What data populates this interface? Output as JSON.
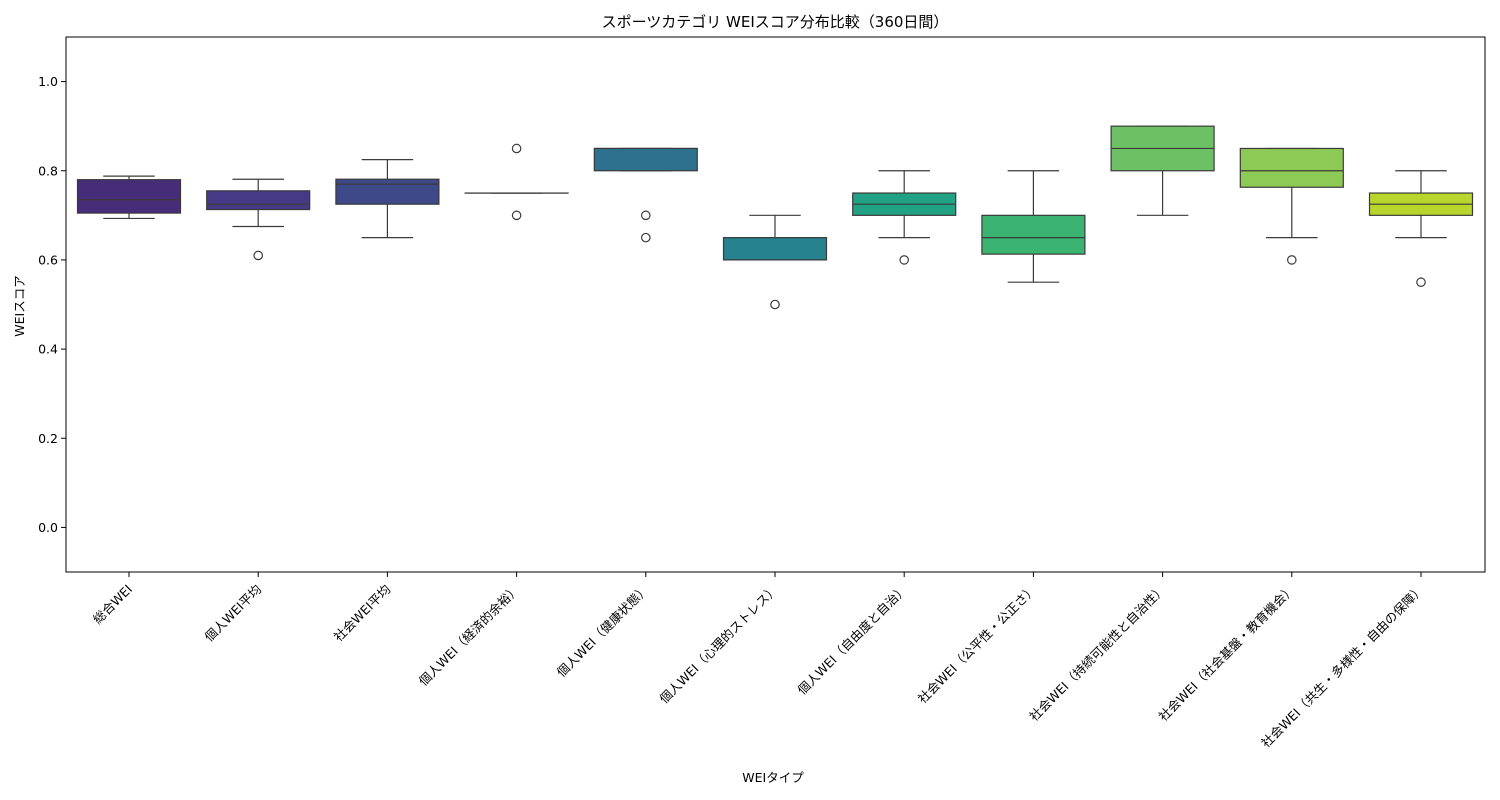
{
  "chart_data": {
    "type": "box",
    "title": "スポーツカテゴリ WEIスコア分布比較（360日間）",
    "xlabel": "WEIタイプ",
    "ylabel": "WEIスコア",
    "ylim": [
      -0.1,
      1.1
    ],
    "yticks": [
      "0.0",
      "0.2",
      "0.4",
      "0.6",
      "0.8",
      "1.0"
    ],
    "grid": false,
    "legend": "none",
    "categories": [
      "総合WEI",
      "個人WEI平均",
      "社会WEI平均",
      "個人WEI（経済的余裕）",
      "個人WEI（健康状態）",
      "個人WEI（心理的ストレス）",
      "個人WEI（自由度と自治）",
      "社会WEI（公平性・公正さ）",
      "社会WEI（持続可能性と自治性）",
      "社会WEI（社会基盤・教育機会）",
      "社会WEI（共生・多様性・自由の保障）"
    ],
    "boxes": [
      {
        "whisker_low": 0.693,
        "q1": 0.705,
        "median": 0.735,
        "q3": 0.78,
        "whisker_high": 0.788,
        "outliers": [],
        "color": "#472c7a"
      },
      {
        "whisker_low": 0.675,
        "q1": 0.713,
        "median": 0.725,
        "q3": 0.755,
        "whisker_high": 0.781,
        "outliers": [
          0.61
        ],
        "color": "#463a87"
      },
      {
        "whisker_low": 0.65,
        "q1": 0.725,
        "median": 0.77,
        "q3": 0.781,
        "whisker_high": 0.825,
        "outliers": [],
        "color": "#3e4989"
      },
      {
        "whisker_low": 0.75,
        "q1": 0.75,
        "median": 0.75,
        "q3": 0.75,
        "whisker_high": 0.75,
        "outliers": [
          0.85,
          0.7
        ],
        "color": "#33638d"
      },
      {
        "whisker_low": 0.8,
        "q1": 0.8,
        "median": 0.85,
        "q3": 0.85,
        "whisker_high": 0.85,
        "outliers": [
          0.7,
          0.65
        ],
        "color": "#2d718e"
      },
      {
        "whisker_low": 0.6,
        "q1": 0.6,
        "median": 0.6,
        "q3": 0.65,
        "whisker_high": 0.7,
        "outliers": [
          0.5
        ],
        "color": "#26828e"
      },
      {
        "whisker_low": 0.65,
        "q1": 0.7,
        "median": 0.725,
        "q3": 0.75,
        "whisker_high": 0.8,
        "outliers": [
          0.6
        ],
        "color": "#22a284"
      },
      {
        "whisker_low": 0.55,
        "q1": 0.613,
        "median": 0.65,
        "q3": 0.7,
        "whisker_high": 0.8,
        "outliers": [],
        "color": "#3bb371"
      },
      {
        "whisker_low": 0.7,
        "q1": 0.8,
        "median": 0.85,
        "q3": 0.9,
        "whisker_high": 0.9,
        "outliers": [],
        "color": "#6cc164"
      },
      {
        "whisker_low": 0.65,
        "q1": 0.763,
        "median": 0.8,
        "q3": 0.85,
        "whisker_high": 0.85,
        "outliers": [
          0.6
        ],
        "color": "#8dc955"
      },
      {
        "whisker_low": 0.65,
        "q1": 0.7,
        "median": 0.725,
        "q3": 0.75,
        "whisker_high": 0.8,
        "outliers": [
          0.55
        ],
        "color": "#b8d52d"
      }
    ]
  }
}
